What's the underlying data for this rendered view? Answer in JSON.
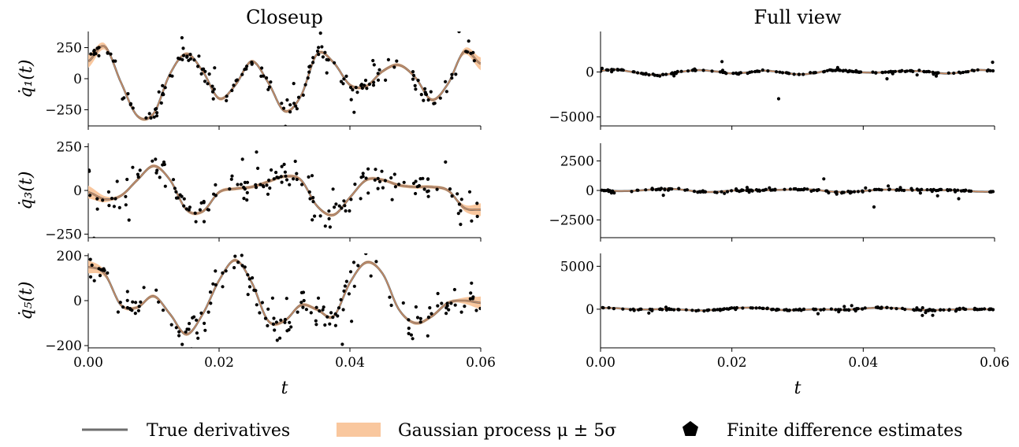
{
  "figure": {
    "left_title": "Closeup",
    "right_title": "Full view",
    "xlabel": "t"
  },
  "legend": {
    "true_label": "True derivatives",
    "gp_label": "Gaussian process μ ± 5σ",
    "fd_label": "Finite difference estimates"
  },
  "colors": {
    "true_line": "#6e6e6e",
    "gp_band": "#f9c79e",
    "gp_mean": "#d89060",
    "points": "#000000"
  },
  "chart_data": [
    {
      "type": "line",
      "panel": "closeup-q1",
      "ylabel": "q̇₁(t)",
      "xlim": [
        0,
        0.06
      ],
      "ylim": [
        -380,
        380
      ],
      "xticks": [
        0,
        0.02,
        0.04,
        0.06
      ],
      "xticklabels": [
        "",
        "",
        "",
        ""
      ],
      "yticks": [
        -250,
        0,
        250
      ],
      "yticklabels": [
        "−250",
        "0",
        "250"
      ],
      "series": [
        {
          "x": [
            0,
            0.0025,
            0.005,
            0.0075,
            0.01,
            0.0125,
            0.015,
            0.0175,
            0.02,
            0.0225,
            0.025,
            0.0275,
            0.03,
            0.0325,
            0.035,
            0.0375,
            0.04,
            0.0425,
            0.045,
            0.0475,
            0.05,
            0.0525,
            0.055,
            0.0575,
            0.06
          ],
          "y": [
            140,
            260,
            -30,
            -300,
            -280,
            40,
            200,
            60,
            -160,
            -50,
            140,
            -30,
            -260,
            -140,
            200,
            130,
            -50,
            -60,
            60,
            110,
            10,
            -170,
            -40,
            220,
            120
          ]
        }
      ]
    },
    {
      "type": "line",
      "panel": "closeup-q3",
      "ylabel": "q̇₃(t)",
      "xlim": [
        0,
        0.06
      ],
      "ylim": [
        -270,
        270
      ],
      "xticks": [
        0,
        0.02,
        0.04,
        0.06
      ],
      "xticklabels": [
        "",
        "",
        "",
        ""
      ],
      "yticks": [
        -250,
        0,
        250
      ],
      "yticklabels": [
        "−250",
        "0",
        "250"
      ],
      "series": [
        {
          "x": [
            0,
            0.0025,
            0.005,
            0.0075,
            0.01,
            0.0125,
            0.015,
            0.0175,
            0.02,
            0.0225,
            0.025,
            0.0275,
            0.03,
            0.0325,
            0.035,
            0.0375,
            0.04,
            0.0425,
            0.045,
            0.0475,
            0.05,
            0.0525,
            0.055,
            0.0575,
            0.06
          ],
          "y": [
            -10,
            -50,
            -30,
            60,
            140,
            60,
            -110,
            -120,
            -10,
            10,
            20,
            50,
            80,
            60,
            -90,
            -140,
            -40,
            60,
            60,
            30,
            20,
            20,
            0,
            -100,
            -110
          ]
        }
      ]
    },
    {
      "type": "line",
      "panel": "closeup-q5",
      "ylabel": "q̇₅(t)",
      "xlim": [
        0,
        0.06
      ],
      "ylim": [
        -210,
        210
      ],
      "xticks": [
        0,
        0.02,
        0.04,
        0.06
      ],
      "xticklabels": [
        "0.00",
        "0.02",
        "0.04",
        "0.06"
      ],
      "yticks": [
        -200,
        0,
        200
      ],
      "yticklabels": [
        "−200",
        "0",
        "200"
      ],
      "series": [
        {
          "x": [
            0,
            0.0025,
            0.005,
            0.0075,
            0.01,
            0.0125,
            0.015,
            0.0175,
            0.02,
            0.0225,
            0.025,
            0.0275,
            0.03,
            0.0325,
            0.035,
            0.0375,
            0.04,
            0.0425,
            0.045,
            0.0475,
            0.05,
            0.0525,
            0.055,
            0.0575,
            0.06
          ],
          "y": [
            150,
            120,
            -20,
            -30,
            20,
            -60,
            -150,
            -60,
            90,
            180,
            80,
            -90,
            -90,
            -20,
            -40,
            -70,
            80,
            170,
            120,
            -40,
            -100,
            -70,
            -10,
            0,
            -10
          ]
        }
      ]
    },
    {
      "type": "line",
      "panel": "full-q1",
      "ylabel": "",
      "xlim": [
        0,
        0.06
      ],
      "ylim": [
        -6000,
        4500
      ],
      "xticks": [
        0,
        0.02,
        0.04,
        0.06
      ],
      "xticklabels": [
        "",
        "",
        "",
        ""
      ],
      "yticks": [
        -5000,
        0
      ],
      "yticklabels": [
        "−5000",
        "0"
      ],
      "series": [
        {
          "x": [
            0,
            0.0025,
            0.005,
            0.0075,
            0.01,
            0.0125,
            0.015,
            0.0175,
            0.02,
            0.0225,
            0.025,
            0.0275,
            0.03,
            0.0325,
            0.035,
            0.0375,
            0.04,
            0.0425,
            0.045,
            0.0475,
            0.05,
            0.0525,
            0.055,
            0.0575,
            0.06
          ],
          "y": [
            140,
            260,
            -30,
            -300,
            -280,
            40,
            200,
            60,
            -160,
            -50,
            140,
            -30,
            -260,
            -140,
            200,
            130,
            -50,
            -60,
            60,
            110,
            10,
            -170,
            -40,
            220,
            120
          ]
        }
      ]
    },
    {
      "type": "line",
      "panel": "full-q3",
      "ylabel": "",
      "xlim": [
        0,
        0.06
      ],
      "ylim": [
        -4000,
        4000
      ],
      "xticks": [
        0,
        0.02,
        0.04,
        0.06
      ],
      "xticklabels": [
        "",
        "",
        "",
        ""
      ],
      "yticks": [
        -2500,
        0,
        2500
      ],
      "yticklabels": [
        "−2500",
        "0",
        "2500"
      ],
      "series": [
        {
          "x": [
            0,
            0.0025,
            0.005,
            0.0075,
            0.01,
            0.0125,
            0.015,
            0.0175,
            0.02,
            0.0225,
            0.025,
            0.0275,
            0.03,
            0.0325,
            0.035,
            0.0375,
            0.04,
            0.0425,
            0.045,
            0.0475,
            0.05,
            0.0525,
            0.055,
            0.0575,
            0.06
          ],
          "y": [
            -10,
            -50,
            -30,
            60,
            140,
            60,
            -110,
            -120,
            -10,
            10,
            20,
            50,
            80,
            60,
            -90,
            -140,
            -40,
            60,
            60,
            30,
            20,
            20,
            0,
            -100,
            -110
          ]
        }
      ]
    },
    {
      "type": "line",
      "panel": "full-q5",
      "ylabel": "",
      "xlim": [
        0,
        0.06
      ],
      "ylim": [
        -4500,
        6500
      ],
      "xticks": [
        0,
        0.02,
        0.04,
        0.06
      ],
      "xticklabels": [
        "0.00",
        "0.02",
        "0.04",
        "0.06"
      ],
      "yticks": [
        0,
        5000
      ],
      "yticklabels": [
        "0",
        "5000"
      ],
      "series": [
        {
          "x": [
            0,
            0.0025,
            0.005,
            0.0075,
            0.01,
            0.0125,
            0.015,
            0.0175,
            0.02,
            0.0225,
            0.025,
            0.0275,
            0.03,
            0.0325,
            0.035,
            0.0375,
            0.04,
            0.0425,
            0.045,
            0.0475,
            0.05,
            0.0525,
            0.055,
            0.0575,
            0.06
          ],
          "y": [
            150,
            120,
            -20,
            -30,
            20,
            -60,
            -150,
            -60,
            90,
            180,
            80,
            -90,
            -90,
            -20,
            -40,
            -70,
            80,
            170,
            120,
            -40,
            -100,
            -70,
            -10,
            0,
            -10
          ]
        }
      ]
    }
  ]
}
